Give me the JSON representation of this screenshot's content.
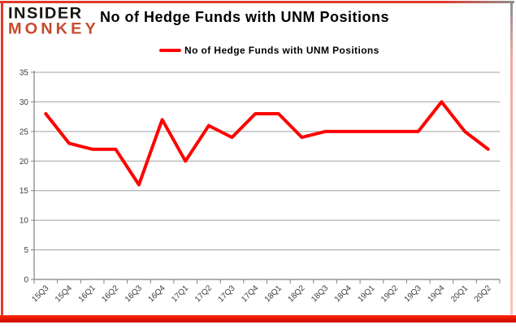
{
  "brand": {
    "line1": "INSIDER",
    "line2": "MONKEY"
  },
  "title": "No of Hedge Funds with UNM Positions",
  "legend": {
    "label": "No of Hedge Funds with UNM Positions"
  },
  "colors": {
    "series_line": "#fe0000",
    "brand_accent": "#c7492c",
    "frame_red": "#df392b",
    "grid_line": "#a0a0a0",
    "axis_line": "#808080",
    "tick_text": "#3d3d3d"
  },
  "chart_data": {
    "type": "line",
    "title": "No of Hedge Funds with UNM Positions",
    "categories": [
      "15Q3",
      "15Q4",
      "16Q1",
      "16Q2",
      "16Q3",
      "16Q4",
      "17Q1",
      "17Q2",
      "17Q3",
      "17Q4",
      "18Q1",
      "18Q2",
      "18Q3",
      "18Q4",
      "19Q1",
      "19Q2",
      "19Q3",
      "19Q4",
      "20Q1",
      "20Q2"
    ],
    "series": [
      {
        "name": "No of Hedge Funds with UNM Positions",
        "color": "#fe0000",
        "values": [
          28,
          23,
          22,
          22,
          16,
          27,
          20,
          26,
          24,
          28,
          28,
          24,
          25,
          25,
          25,
          25,
          25,
          30,
          25,
          22
        ]
      }
    ],
    "xlabel": "",
    "ylabel": "",
    "ylim": [
      0,
      35
    ],
    "ytick_step": 5,
    "grid": "horizontal-only",
    "legend_position": "top-center",
    "x_label_rotation_deg": -45
  }
}
